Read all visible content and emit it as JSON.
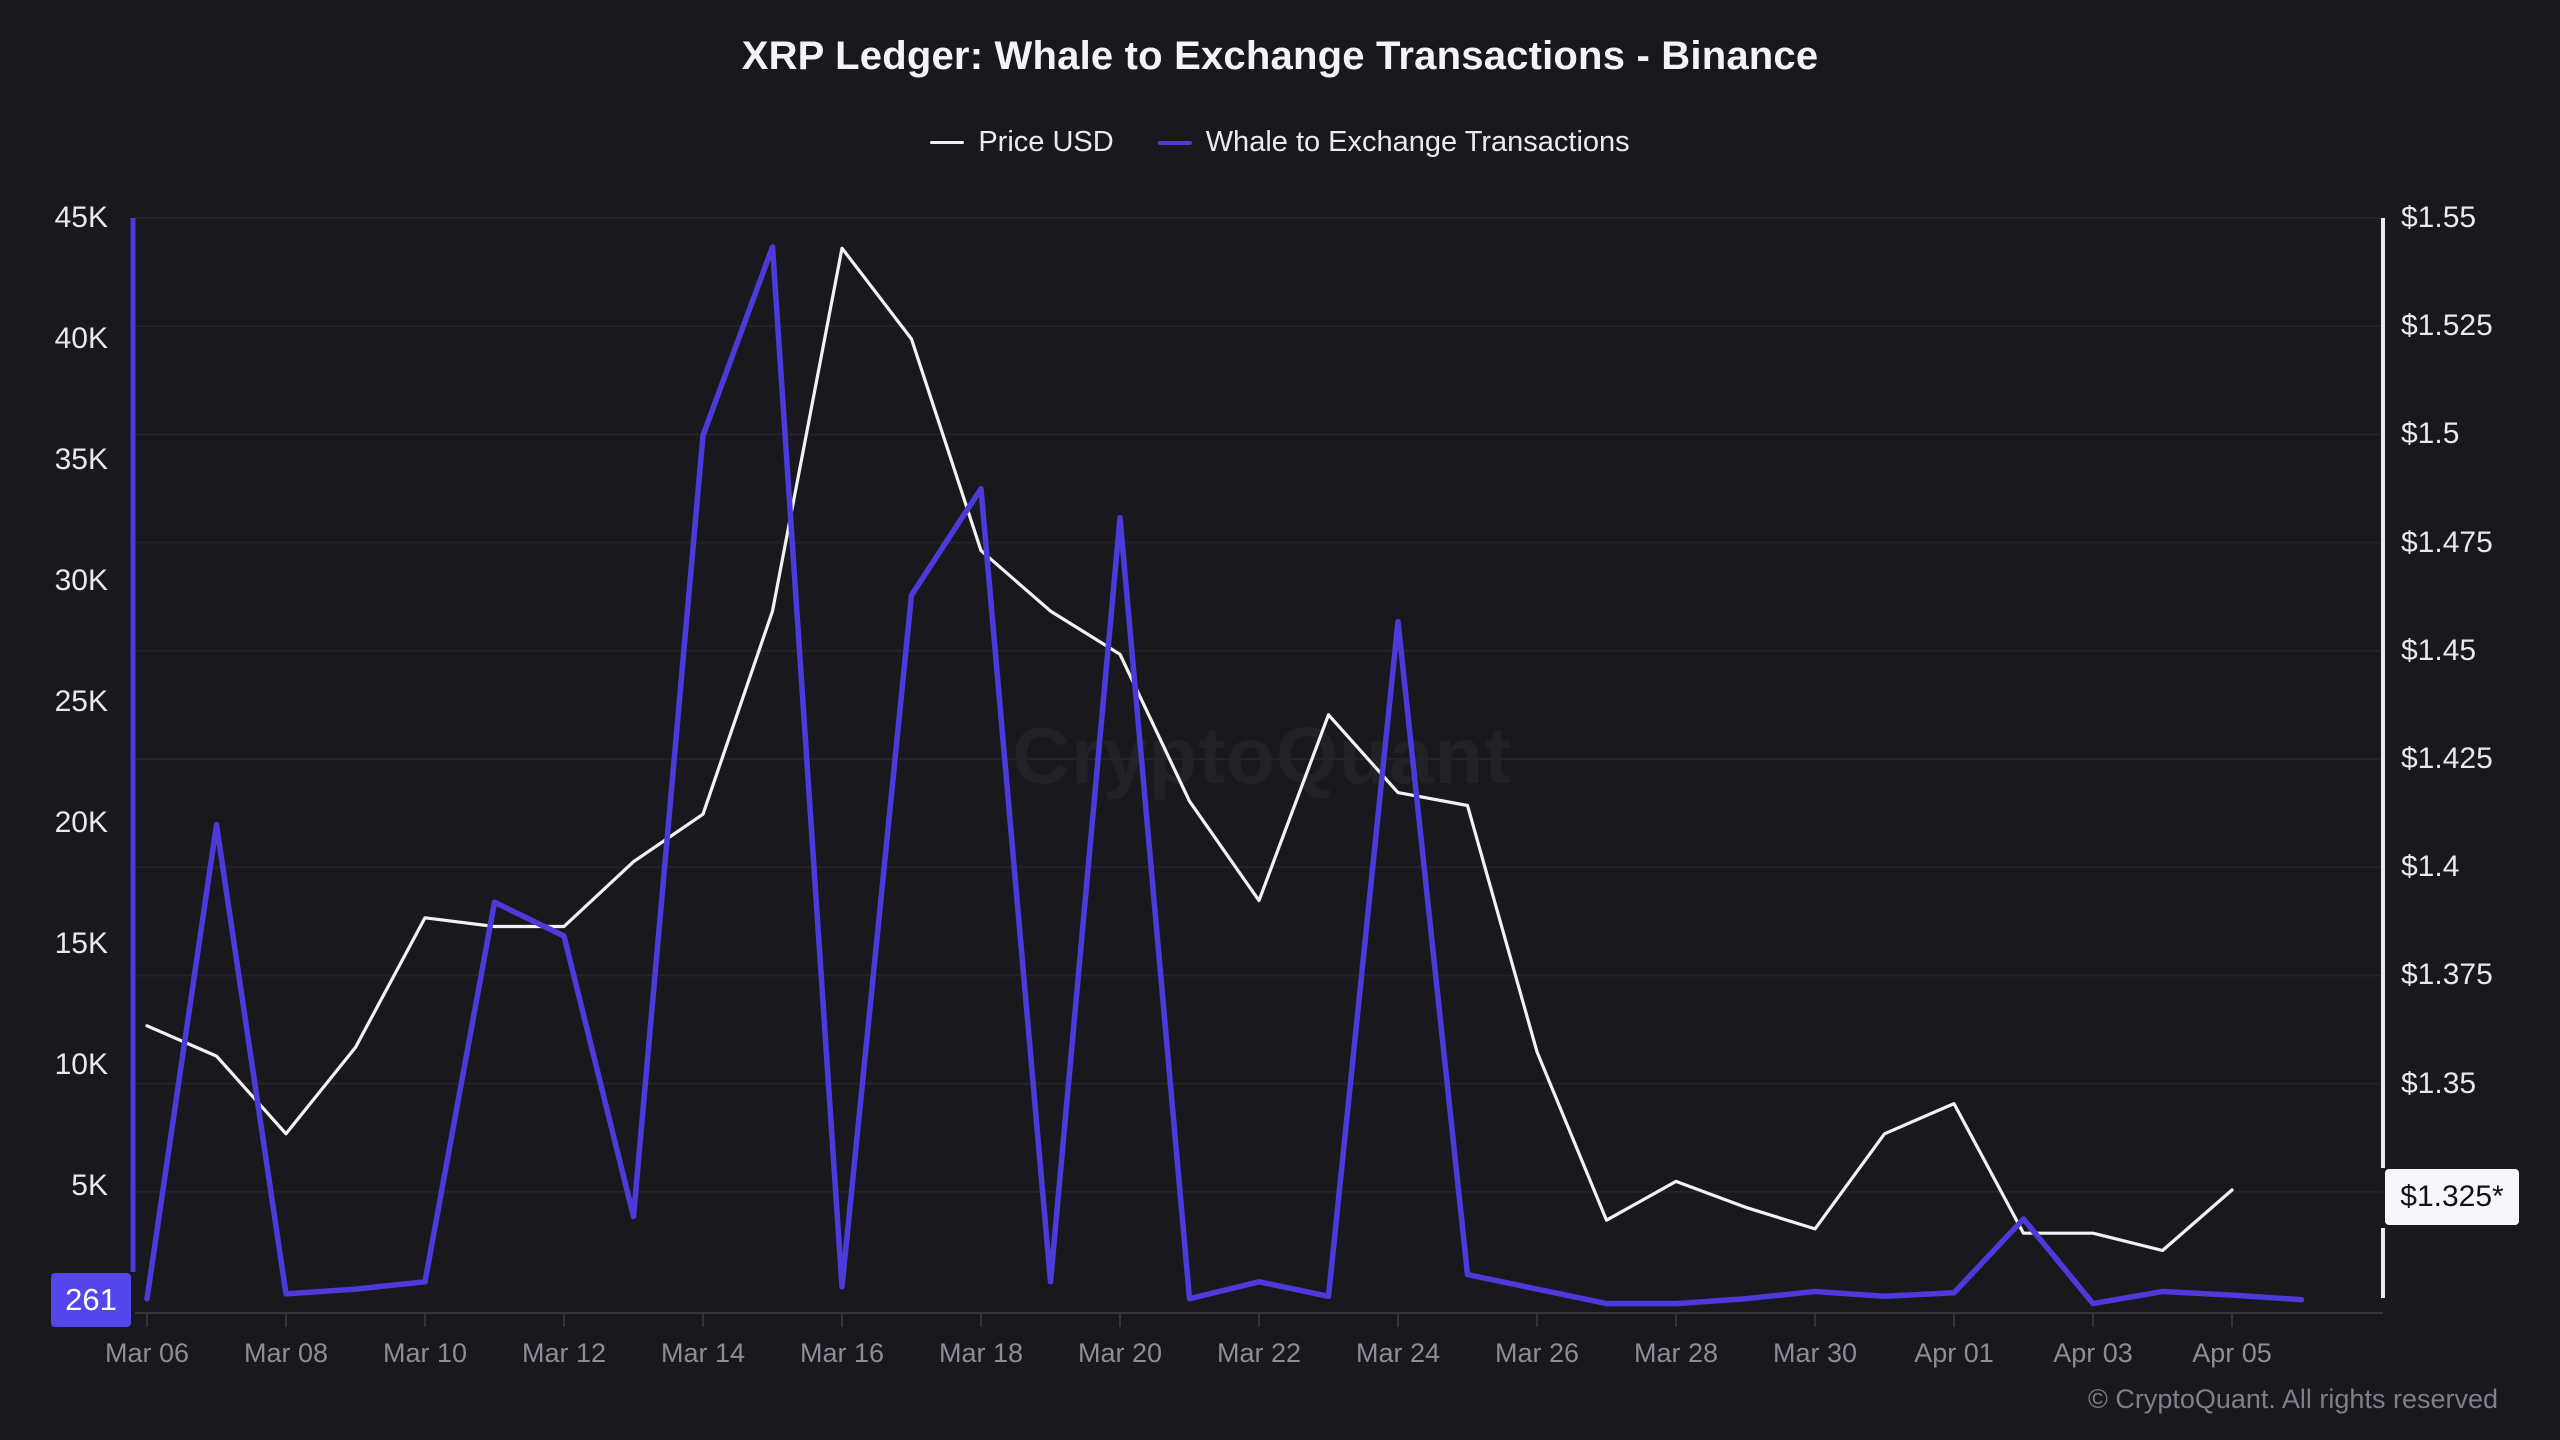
{
  "title": "XRP Ledger: Whale to Exchange Transactions - Binance",
  "legend": [
    {
      "label": "Price USD",
      "color": "#f2f2f4"
    },
    {
      "label": "Whale to Exchange Transactions",
      "color": "#4c3adb"
    }
  ],
  "watermark": "CryptoQuant",
  "footer": "© CryptoQuant. All rights reserved",
  "badges": {
    "whale_latest": "261",
    "price_latest": "$1.325*"
  },
  "colors": {
    "background": "#19181d",
    "gridline": "#242329",
    "whale_line": "#4c3adb",
    "whale_axis": "#4c3adb",
    "whale_badge": "#5546e9",
    "price_line": "#f2f2f4",
    "price_axis": "#eaeaee",
    "x_axis_line": "#34333b",
    "tick_label": "#e9e8ee",
    "x_label": "#8e8c96"
  },
  "chart_data": {
    "type": "line",
    "title": "XRP Ledger: Whale to Exchange Transactions - Binance",
    "legend_position": "top",
    "grid": "horizontal",
    "x": [
      "Mar 06",
      "Mar 07",
      "Mar 08",
      "Mar 09",
      "Mar 10",
      "Mar 11",
      "Mar 12",
      "Mar 13",
      "Mar 14",
      "Mar 15",
      "Mar 16",
      "Mar 17",
      "Mar 18",
      "Mar 19",
      "Mar 20",
      "Mar 21",
      "Mar 22",
      "Mar 23",
      "Mar 24",
      "Mar 25",
      "Mar 26",
      "Mar 27",
      "Mar 28",
      "Mar 29",
      "Mar 30",
      "Mar 31",
      "Apr 01",
      "Apr 02",
      "Apr 03",
      "Apr 04",
      "Apr 05",
      "Apr 06"
    ],
    "x_tick_labels": [
      "Mar 06",
      "Mar 08",
      "Mar 10",
      "Mar 12",
      "Mar 14",
      "Mar 16",
      "Mar 18",
      "Mar 20",
      "Mar 22",
      "Mar 24",
      "Mar 26",
      "Mar 28",
      "Mar 30",
      "Apr 01",
      "Apr 03",
      "Apr 05"
    ],
    "series": [
      {
        "name": "Price USD",
        "axis": "right",
        "unit": "USD",
        "values": [
          1.363,
          1.356,
          1.338,
          1.358,
          1.388,
          1.386,
          1.386,
          1.401,
          1.412,
          1.459,
          1.543,
          1.522,
          1.473,
          1.459,
          1.449,
          1.415,
          1.392,
          1.435,
          1.417,
          1.414,
          1.357,
          1.318,
          1.327,
          1.321,
          1.316,
          1.338,
          1.345,
          1.315,
          1.315,
          1.311,
          1.325,
          null
        ]
      },
      {
        "name": "Whale to Exchange Transactions",
        "axis": "left",
        "unit": "transactions",
        "values": [
          300,
          19900,
          500,
          700,
          1000,
          16700,
          15300,
          3700,
          36000,
          43800,
          800,
          29400,
          33800,
          1000,
          32600,
          300,
          1000,
          400,
          28300,
          1300,
          700,
          100,
          100,
          300,
          600,
          400,
          550,
          3600,
          100,
          600,
          450,
          261
        ]
      }
    ],
    "left_axis": {
      "label": "Whale to Exchange Transactions",
      "ticks": [
        "45K",
        "40K",
        "35K",
        "30K",
        "25K",
        "20K",
        "15K",
        "10K",
        "5K"
      ],
      "range": [
        0,
        45000
      ],
      "latest_value": 261
    },
    "right_axis": {
      "label": "Price USD",
      "ticks": [
        "$1.55",
        "$1.525",
        "$1.5",
        "$1.475",
        "$1.45",
        "$1.425",
        "$1.4",
        "$1.375",
        "$1.35"
      ],
      "range": [
        1.3,
        1.55
      ],
      "latest_value": "$1.325*"
    }
  }
}
